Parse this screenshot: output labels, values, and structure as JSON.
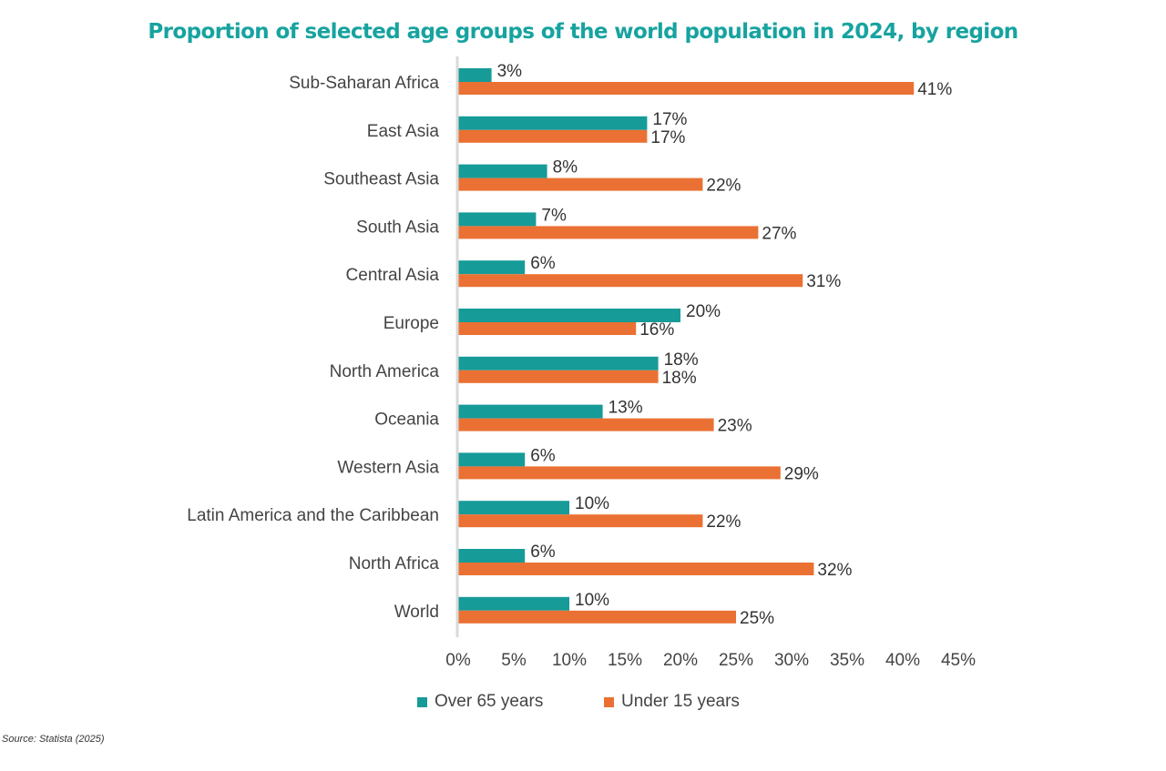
{
  "chart_data": {
    "type": "bar",
    "orientation": "horizontal",
    "title": "Proportion of selected age groups of the world population in 2024, by region",
    "categories": [
      "Sub-Saharan Africa",
      "East Asia",
      "Southeast Asia",
      "South Asia",
      "Central Asia",
      "Europe",
      "North America",
      "Oceania",
      "Western Asia",
      "Latin America and the Caribbean",
      "North Africa",
      "World"
    ],
    "series": [
      {
        "name": "Over 65 years",
        "color": "#169b98",
        "values": [
          3,
          17,
          8,
          7,
          6,
          20,
          18,
          13,
          6,
          10,
          6,
          10
        ]
      },
      {
        "name": "Under 15 years",
        "color": "#ea7133",
        "values": [
          41,
          17,
          22,
          27,
          31,
          16,
          18,
          23,
          29,
          22,
          32,
          25
        ]
      }
    ],
    "xlim": [
      0,
      45
    ],
    "xticks": [
      "0%",
      "5%",
      "10%",
      "15%",
      "20%",
      "25%",
      "30%",
      "35%",
      "40%",
      "45%"
    ],
    "xlabel": "",
    "ylabel": "",
    "grid": false,
    "legend_position": "bottom"
  },
  "source": "Source: Statista (2025)"
}
